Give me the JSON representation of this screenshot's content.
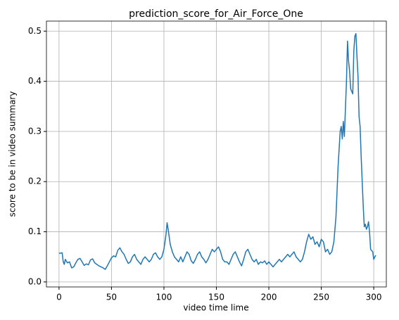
{
  "chart_data": {
    "type": "line",
    "title": "prediction_score_for_Air_Force_One",
    "x_label": "video time lime",
    "y_label": "score to be in video summary",
    "xlim": [
      -12,
      312
    ],
    "ylim": [
      -0.01,
      0.52
    ],
    "xticks": [
      0,
      50,
      100,
      150,
      200,
      250,
      300
    ],
    "yticks": [
      {
        "value": 0,
        "label": "0.0"
      },
      0.1,
      0.2,
      0.3,
      0.4,
      0.5
    ],
    "grid": true,
    "series": [
      {
        "color": "#1f77b4",
        "x": [
          0,
          3,
          4,
          5,
          6,
          8,
          10,
          12,
          14,
          16,
          18,
          20,
          22,
          24,
          26,
          28,
          30,
          32,
          34,
          36,
          38,
          40,
          42,
          44,
          46,
          48,
          50,
          52,
          54,
          56,
          58,
          60,
          62,
          64,
          66,
          68,
          70,
          72,
          74,
          76,
          78,
          80,
          82,
          84,
          86,
          88,
          90,
          92,
          94,
          96,
          98,
          100,
          102,
          103,
          104,
          106,
          108,
          110,
          112,
          114,
          116,
          118,
          120,
          122,
          124,
          126,
          128,
          130,
          132,
          134,
          136,
          138,
          140,
          142,
          144,
          146,
          148,
          150,
          152,
          154,
          156,
          158,
          160,
          162,
          164,
          166,
          168,
          170,
          172,
          174,
          176,
          178,
          180,
          182,
          184,
          186,
          188,
          190,
          192,
          194,
          196,
          198,
          200,
          202,
          204,
          206,
          208,
          210,
          212,
          214,
          216,
          218,
          220,
          222,
          224,
          226,
          228,
          230,
          232,
          234,
          236,
          238,
          240,
          242,
          244,
          246,
          248,
          250,
          252,
          254,
          256,
          258,
          260,
          262,
          264,
          266,
          268,
          269,
          270,
          271,
          272,
          274,
          275,
          276,
          277,
          278,
          280,
          281,
          282,
          283,
          284,
          285,
          286,
          287,
          288,
          289,
          290,
          291,
          292,
          293,
          294,
          295,
          296,
          297,
          299,
          300,
          301,
          302
        ],
        "values": [
          0.057,
          0.058,
          0.04,
          0.035,
          0.045,
          0.038,
          0.04,
          0.028,
          0.03,
          0.038,
          0.045,
          0.047,
          0.04,
          0.033,
          0.036,
          0.034,
          0.044,
          0.046,
          0.038,
          0.035,
          0.032,
          0.03,
          0.028,
          0.025,
          0.032,
          0.04,
          0.048,
          0.052,
          0.05,
          0.063,
          0.068,
          0.06,
          0.055,
          0.045,
          0.037,
          0.04,
          0.05,
          0.055,
          0.045,
          0.04,
          0.035,
          0.045,
          0.05,
          0.045,
          0.04,
          0.045,
          0.055,
          0.058,
          0.05,
          0.045,
          0.05,
          0.065,
          0.095,
          0.118,
          0.105,
          0.075,
          0.06,
          0.05,
          0.045,
          0.04,
          0.05,
          0.04,
          0.05,
          0.06,
          0.055,
          0.042,
          0.037,
          0.045,
          0.055,
          0.06,
          0.05,
          0.045,
          0.038,
          0.045,
          0.055,
          0.065,
          0.06,
          0.065,
          0.07,
          0.06,
          0.045,
          0.04,
          0.04,
          0.035,
          0.045,
          0.055,
          0.06,
          0.05,
          0.04,
          0.032,
          0.045,
          0.06,
          0.065,
          0.055,
          0.045,
          0.04,
          0.045,
          0.035,
          0.04,
          0.038,
          0.042,
          0.035,
          0.04,
          0.035,
          0.03,
          0.035,
          0.04,
          0.045,
          0.04,
          0.045,
          0.05,
          0.055,
          0.05,
          0.055,
          0.06,
          0.05,
          0.045,
          0.04,
          0.045,
          0.06,
          0.08,
          0.095,
          0.085,
          0.09,
          0.075,
          0.08,
          0.07,
          0.085,
          0.08,
          0.06,
          0.065,
          0.055,
          0.06,
          0.08,
          0.13,
          0.23,
          0.3,
          0.31,
          0.285,
          0.32,
          0.29,
          0.4,
          0.48,
          0.44,
          0.42,
          0.385,
          0.375,
          0.46,
          0.49,
          0.495,
          0.45,
          0.41,
          0.33,
          0.31,
          0.25,
          0.2,
          0.15,
          0.11,
          0.115,
          0.105,
          0.11,
          0.12,
          0.1,
          0.065,
          0.06,
          0.045,
          0.05,
          0.053
        ]
      }
    ]
  }
}
